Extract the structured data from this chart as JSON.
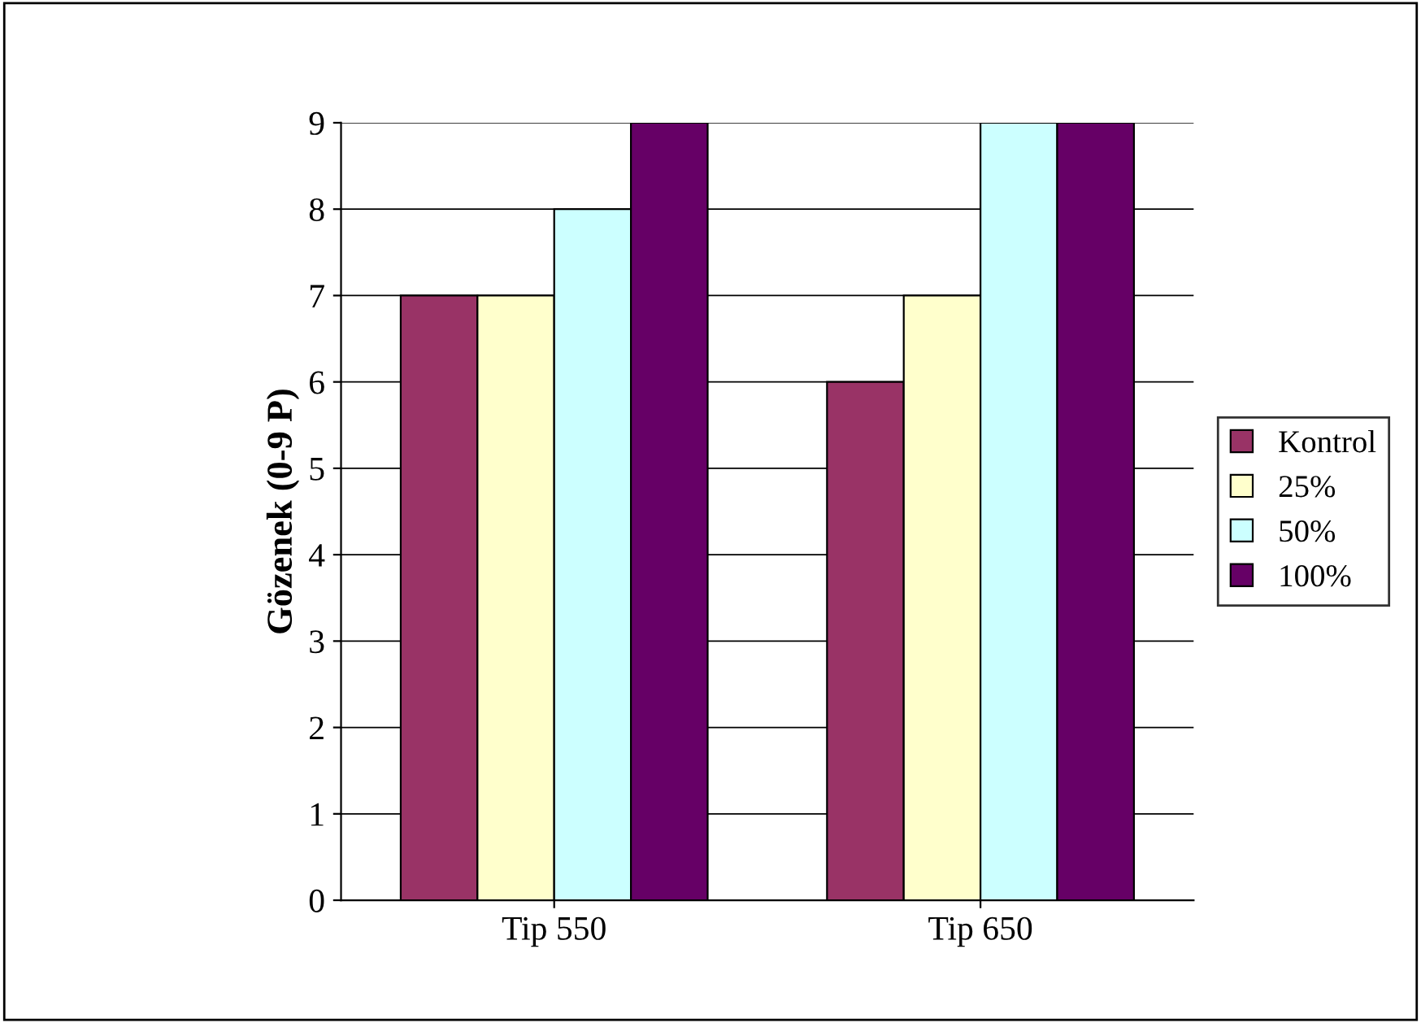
{
  "chart_data": {
    "type": "bar",
    "ylabel": "Gözenek (0-9 P)",
    "categories": [
      "Tip 550",
      "Tip 650"
    ],
    "series": [
      {
        "name": "Kontrol",
        "color": "#993366",
        "values": [
          7,
          6
        ]
      },
      {
        "name": "25%",
        "color": "#ffffcc",
        "values": [
          7,
          7
        ]
      },
      {
        "name": "50%",
        "color": "#ccffff",
        "values": [
          8,
          9
        ]
      },
      {
        "name": "100%",
        "color": "#660066",
        "values": [
          9,
          9
        ]
      }
    ],
    "ylim": [
      0,
      9
    ],
    "yticks": [
      0,
      1,
      2,
      3,
      4,
      5,
      6,
      7,
      8,
      9
    ],
    "grid": "y",
    "legend": "right"
  }
}
